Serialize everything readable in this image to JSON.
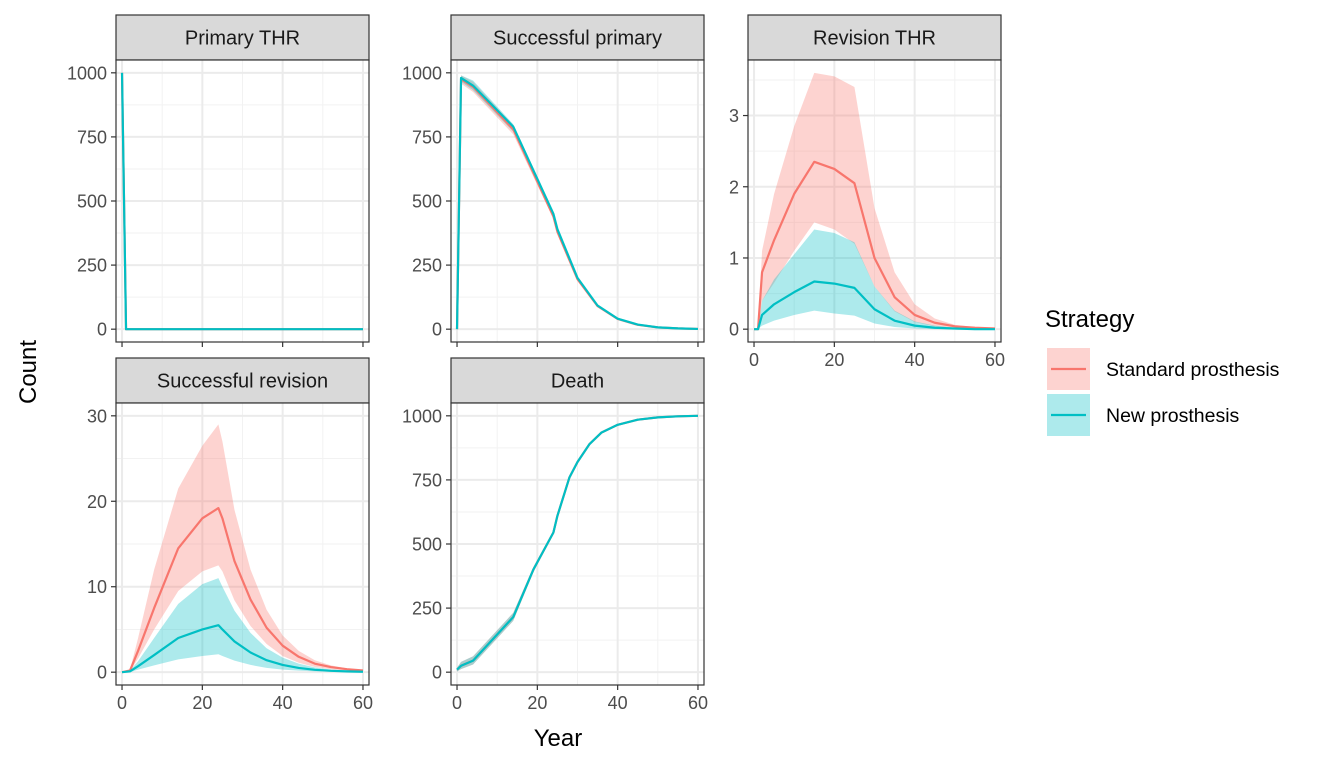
{
  "chart_data": {
    "type": "line",
    "xlabel": "Year",
    "ylabel": "Count",
    "legend": {
      "title": "Strategy",
      "placement": "right",
      "entries": [
        {
          "name": "Standard prosthesis",
          "color": "#F8766D",
          "fill": "#FFCCCC"
        },
        {
          "name": "New prosthesis",
          "color": "#00BFC4",
          "fill": "#B3ECEC"
        }
      ]
    },
    "grid": true,
    "panels": [
      {
        "name": "Primary THR",
        "xlim": [
          -1.5,
          61.5
        ],
        "ylim": [
          -50,
          1050
        ],
        "xticks": [
          0,
          20,
          40,
          60
        ],
        "yticks": [
          0,
          250,
          500,
          750,
          1000
        ],
        "show_x_labels": false,
        "series": [
          {
            "name": "Standard prosthesis",
            "x": [
              0,
              1,
              2,
              60
            ],
            "y": [
              1000,
              0,
              0,
              0
            ],
            "lower": [
              1000,
              0,
              0,
              0
            ],
            "upper": [
              1000,
              0,
              0,
              0
            ]
          },
          {
            "name": "New prosthesis",
            "x": [
              0,
              1,
              2,
              60
            ],
            "y": [
              1000,
              0,
              0,
              0
            ],
            "lower": [
              1000,
              0,
              0,
              0
            ],
            "upper": [
              1000,
              0,
              0,
              0
            ]
          }
        ]
      },
      {
        "name": "Successful primary",
        "xlim": [
          -1.5,
          61.5
        ],
        "ylim": [
          -50,
          1050
        ],
        "xticks": [
          0,
          20,
          40,
          60
        ],
        "yticks": [
          0,
          250,
          500,
          750,
          1000
        ],
        "show_x_labels": false,
        "series": [
          {
            "name": "Standard prosthesis",
            "x": [
              0,
              1,
              4,
              14,
              24,
              25,
              30,
              35,
              40,
              45,
              50,
              55,
              60
            ],
            "y": [
              0,
              975,
              945,
              780,
              440,
              380,
              195,
              90,
              40,
              17,
              7,
              3,
              1
            ],
            "lower": [
              0,
              958,
              925,
              760,
              430,
              372,
              190,
              87,
              38,
              16,
              7,
              3,
              1
            ],
            "upper": [
              0,
              990,
              965,
              795,
              450,
              388,
              200,
              93,
              42,
              18,
              8,
              3,
              1
            ]
          },
          {
            "name": "New prosthesis",
            "x": [
              0,
              1,
              4,
              14,
              24,
              25,
              30,
              35,
              40,
              45,
              50,
              55,
              60
            ],
            "y": [
              0,
              980,
              950,
              790,
              450,
              390,
              200,
              92,
              41,
              18,
              7,
              3,
              1
            ],
            "lower": [
              0,
              965,
              932,
              770,
              440,
              380,
              195,
              88,
              39,
              17,
              7,
              3,
              1
            ],
            "upper": [
              0,
              990,
              970,
              800,
              460,
              396,
              205,
              95,
              43,
              19,
              8,
              3,
              1
            ]
          }
        ]
      },
      {
        "name": "Revision THR",
        "xlim": [
          -1.5,
          61.5
        ],
        "ylim": [
          -0.18,
          3.78
        ],
        "xticks": [
          0,
          20,
          40,
          60
        ],
        "yticks": [
          0,
          1,
          2,
          3
        ],
        "show_x_labels": true,
        "series": [
          {
            "name": "Standard prosthesis",
            "x": [
              0,
              1,
              2,
              5,
              10,
              15,
              20,
              25,
              30,
              35,
              40,
              45,
              50,
              55,
              60
            ],
            "y": [
              0,
              0,
              0.8,
              1.25,
              1.9,
              2.35,
              2.25,
              2.05,
              1.0,
              0.45,
              0.2,
              0.09,
              0.04,
              0.02,
              0.01
            ],
            "lower": [
              0,
              0,
              0.4,
              0.65,
              1.1,
              1.5,
              1.4,
              1.2,
              0.6,
              0.25,
              0.1,
              0.04,
              0.02,
              0.01,
              0.0
            ],
            "upper": [
              0,
              0,
              1.1,
              1.9,
              2.85,
              3.6,
              3.55,
              3.4,
              1.7,
              0.8,
              0.35,
              0.15,
              0.06,
              0.03,
              0.01
            ]
          },
          {
            "name": "New prosthesis",
            "x": [
              0,
              1,
              2,
              5,
              10,
              15,
              20,
              25,
              30,
              35,
              40,
              45,
              50,
              55,
              60
            ],
            "y": [
              0,
              0,
              0.2,
              0.35,
              0.52,
              0.67,
              0.64,
              0.58,
              0.28,
              0.12,
              0.05,
              0.02,
              0.01,
              0.0,
              0.0
            ],
            "lower": [
              0,
              0,
              0.05,
              0.12,
              0.2,
              0.26,
              0.22,
              0.19,
              0.08,
              0.03,
              0.01,
              0.0,
              0.0,
              0.0,
              0.0
            ],
            "upper": [
              0,
              0,
              0.4,
              0.7,
              1.05,
              1.4,
              1.35,
              1.22,
              0.6,
              0.26,
              0.11,
              0.05,
              0.02,
              0.01,
              0.0
            ]
          }
        ]
      },
      {
        "name": "Successful revision",
        "xlim": [
          -1.5,
          61.5
        ],
        "ylim": [
          -1.5,
          31.5
        ],
        "xticks": [
          0,
          20,
          40,
          60
        ],
        "yticks": [
          0,
          10,
          20,
          30
        ],
        "show_x_labels": true,
        "series": [
          {
            "name": "Standard prosthesis",
            "x": [
              0,
              2,
              4,
              8,
              14,
              20,
              24,
              25,
              28,
              32,
              36,
              40,
              44,
              48,
              52,
              56,
              60
            ],
            "y": [
              0,
              0.2,
              2.5,
              7.5,
              14.5,
              18,
              19.2,
              18,
              13,
              8.5,
              5.2,
              3.1,
              1.8,
              1.0,
              0.6,
              0.35,
              0.2
            ],
            "lower": [
              0,
              0.1,
              1.6,
              5.0,
              9.5,
              11.8,
              12.5,
              11.8,
              8.4,
              5.4,
              3.3,
              1.9,
              1.1,
              0.6,
              0.35,
              0.2,
              0.1
            ],
            "upper": [
              0,
              0.3,
              4.0,
              12.0,
              21.5,
              26.5,
              29.0,
              27.0,
              19.0,
              12.0,
              7.3,
              4.3,
              2.5,
              1.4,
              0.8,
              0.45,
              0.25
            ]
          },
          {
            "name": "New prosthesis",
            "x": [
              0,
              2,
              4,
              8,
              14,
              20,
              24,
              25,
              28,
              32,
              36,
              40,
              44,
              48,
              52,
              56,
              60
            ],
            "y": [
              0,
              0.1,
              0.7,
              2.0,
              4.0,
              5.0,
              5.5,
              5.0,
              3.6,
              2.3,
              1.4,
              0.85,
              0.5,
              0.28,
              0.16,
              0.09,
              0.05
            ],
            "lower": [
              0,
              0.0,
              0.3,
              0.8,
              1.5,
              1.9,
              2.1,
              1.9,
              1.35,
              0.85,
              0.5,
              0.3,
              0.18,
              0.1,
              0.06,
              0.03,
              0.02
            ],
            "upper": [
              0,
              0.2,
              1.3,
              4.0,
              8.0,
              10.3,
              11.0,
              10.0,
              7.2,
              4.6,
              2.8,
              1.7,
              1.0,
              0.56,
              0.32,
              0.18,
              0.1
            ]
          }
        ]
      },
      {
        "name": "Death",
        "xlim": [
          -1.5,
          61.5
        ],
        "ylim": [
          -50,
          1050
        ],
        "xticks": [
          0,
          20,
          40,
          60
        ],
        "yticks": [
          0,
          250,
          500,
          750,
          1000
        ],
        "show_x_labels": true,
        "series": [
          {
            "name": "Standard prosthesis",
            "x": [
              0,
              1,
              4,
              14,
              19,
              24,
              25,
              28,
              30,
              33,
              36,
              40,
              45,
              50,
              55,
              60
            ],
            "y": [
              10,
              25,
              45,
              215,
              400,
              545,
              610,
              760,
              820,
              890,
              935,
              965,
              985,
              994,
              998,
              1000
            ],
            "lower": [
              2,
              12,
              30,
              200,
              390,
              538,
              604,
              755,
              816,
              887,
              933,
              963,
              984,
              993,
              997,
              999
            ],
            "upper": [
              18,
              40,
              62,
              232,
              410,
              552,
              616,
              765,
              824,
              893,
              937,
              967,
              986,
              995,
              999,
              1000
            ]
          },
          {
            "name": "New prosthesis",
            "x": [
              0,
              1,
              4,
              14,
              19,
              24,
              25,
              28,
              30,
              33,
              36,
              40,
              45,
              50,
              55,
              60
            ],
            "y": [
              10,
              25,
              45,
              215,
              400,
              545,
              610,
              760,
              820,
              890,
              935,
              965,
              985,
              994,
              998,
              1000
            ],
            "lower": [
              2,
              12,
              30,
              200,
              390,
              538,
              604,
              755,
              816,
              887,
              933,
              963,
              984,
              993,
              997,
              999
            ],
            "upper": [
              18,
              40,
              62,
              232,
              410,
              552,
              616,
              765,
              824,
              893,
              937,
              967,
              986,
              995,
              999,
              1000
            ]
          }
        ]
      }
    ]
  }
}
